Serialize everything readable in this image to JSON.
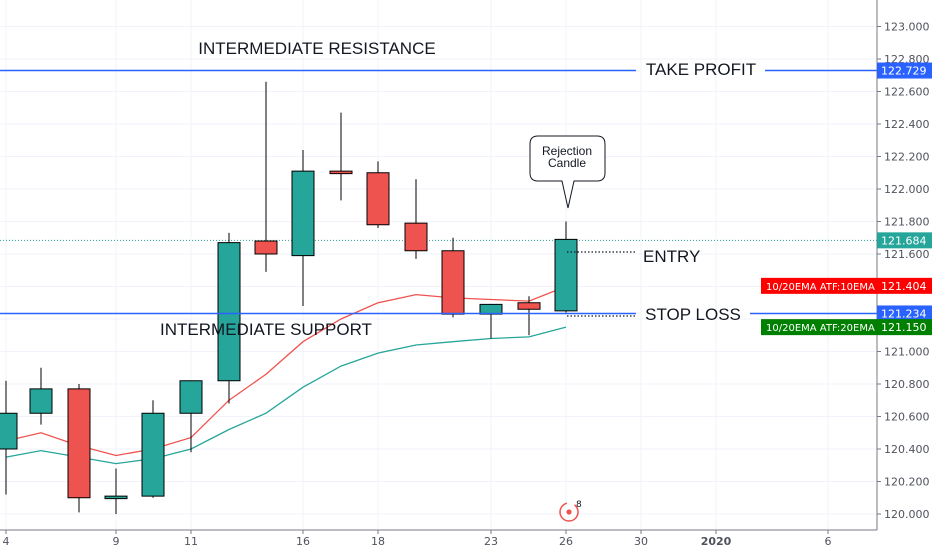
{
  "chart_data": {
    "type": "candlestick",
    "x_ticks": [
      "4",
      "9",
      "11",
      "16",
      "18",
      "23",
      "26",
      "30",
      "2020",
      "6"
    ],
    "y_ticks": [
      "123.000",
      "122.800",
      "122.600",
      "122.400",
      "122.200",
      "122.000",
      "121.800",
      "121.600",
      "121.400",
      "121.200",
      "121.000",
      "120.800",
      "120.600",
      "120.400",
      "120.200",
      "120.000"
    ],
    "ylim": [
      119.97,
      123.12
    ],
    "candles": [
      {
        "o": 120.4,
        "h": 120.82,
        "l": 120.12,
        "c": 120.62
      },
      {
        "o": 120.62,
        "h": 120.9,
        "l": 120.55,
        "c": 120.77
      },
      {
        "o": 120.77,
        "h": 120.8,
        "l": 120.01,
        "c": 120.1
      },
      {
        "o": 120.1,
        "h": 120.28,
        "l": 120.0,
        "c": 120.11
      },
      {
        "o": 120.11,
        "h": 120.7,
        "l": 120.1,
        "c": 120.62
      },
      {
        "o": 120.62,
        "h": 120.82,
        "l": 120.38,
        "c": 120.82
      },
      {
        "o": 120.82,
        "h": 121.73,
        "l": 120.68,
        "c": 121.67
      },
      {
        "o": 121.68,
        "h": 122.66,
        "l": 121.49,
        "c": 121.6
      },
      {
        "o": 121.59,
        "h": 122.24,
        "l": 121.28,
        "c": 122.11
      },
      {
        "o": 122.11,
        "h": 122.47,
        "l": 121.93,
        "c": 122.1
      },
      {
        "o": 122.1,
        "h": 122.17,
        "l": 121.76,
        "c": 121.78
      },
      {
        "o": 121.79,
        "h": 122.06,
        "l": 121.57,
        "c": 121.62
      },
      {
        "o": 121.62,
        "h": 121.7,
        "l": 121.21,
        "c": 121.23
      },
      {
        "o": 121.23,
        "h": 121.29,
        "l": 121.08,
        "c": 121.29
      },
      {
        "o": 121.3,
        "h": 121.34,
        "l": 121.1,
        "c": 121.26
      },
      {
        "o": 121.25,
        "h": 121.8,
        "l": 121.24,
        "c": 121.69
      }
    ],
    "series": [
      {
        "name": "10/20EMA ATF:10EMA",
        "color": "#ef5350",
        "values": [
          120.45,
          120.5,
          120.42,
          120.36,
          120.4,
          120.47,
          120.7,
          120.86,
          121.06,
          121.2,
          121.3,
          121.35,
          121.33,
          121.32,
          121.31,
          121.4
        ]
      },
      {
        "name": "10/20EMA ATF:20EMA",
        "color": "#26a69a",
        "values": [
          120.35,
          120.39,
          120.35,
          120.31,
          120.34,
          120.4,
          120.52,
          120.62,
          120.78,
          120.91,
          120.99,
          121.04,
          121.06,
          121.08,
          121.09,
          121.15
        ]
      }
    ],
    "levels": [
      {
        "label": "TAKE PROFIT",
        "value": 122.729,
        "tag": "122.729",
        "color": "#2962ff"
      },
      {
        "label": "STOP LOSS",
        "value": 121.234,
        "tag": "121.234",
        "color": "#2962ff"
      }
    ],
    "last_price": {
      "value": 121.684,
      "tag": "121.684",
      "color": "#26a69a"
    },
    "ema_tags": [
      {
        "text": "10/20EMA ATF:10EMA",
        "value": "121.404",
        "color": "#ff0000"
      },
      {
        "text": "10/20EMA ATF:20EMA",
        "value": "121.150",
        "color": "#008000"
      }
    ],
    "annotations": {
      "resistance": "INTERMEDIATE RESISTANCE",
      "support": "INTERMEDIATE SUPPORT",
      "entry": "ENTRY",
      "callout_line1": "Rejection",
      "callout_line2": "Candle"
    },
    "badge": "8",
    "colors": {
      "up": "#26a69a",
      "down": "#ef5350",
      "level": "#2962ff",
      "grid": "#f0f3fa"
    }
  }
}
